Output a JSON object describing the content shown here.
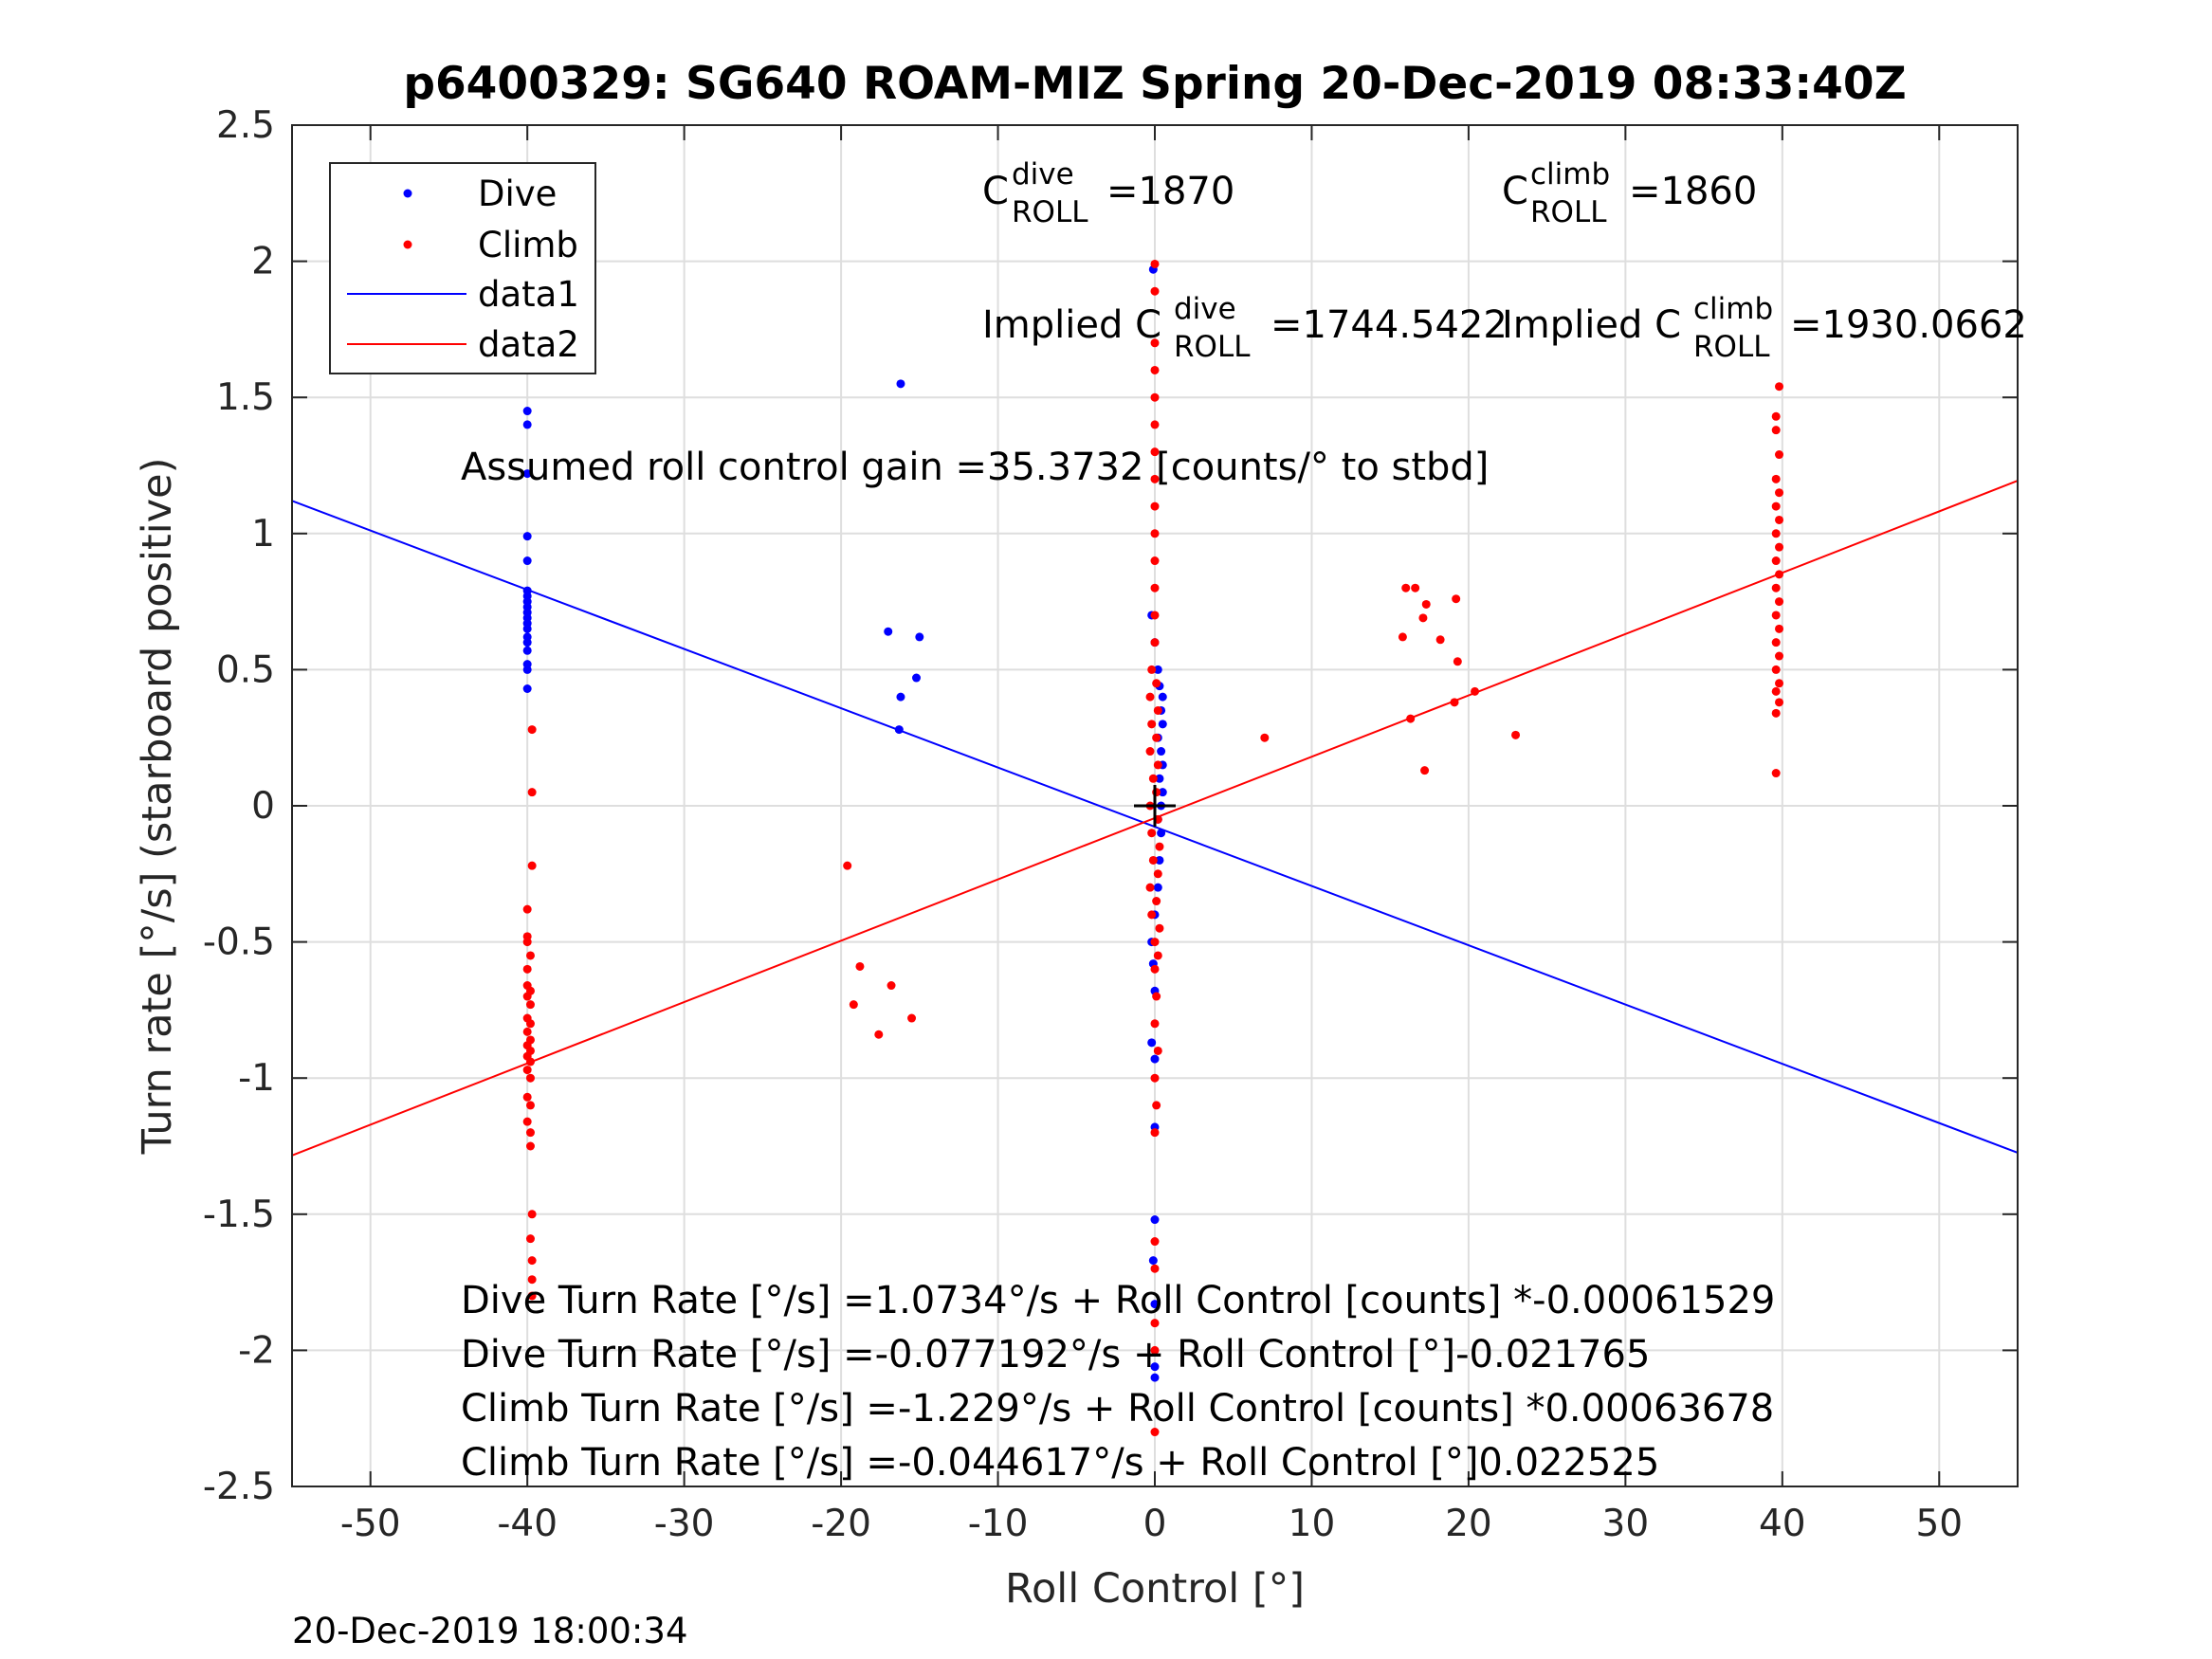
{
  "chart_data": {
    "type": "scatter",
    "title": "p6400329: SG640 ROAM-MIZ Spring 20-Dec-2019 08:33:40Z",
    "xlabel": "Roll Control [°]",
    "ylabel": "Turn rate [°/s] (starboard positive)",
    "xlim": [
      -55,
      55
    ],
    "ylim": [
      -2.5,
      2.5
    ],
    "x_ticks": [
      "-50",
      "-40",
      "-30",
      "-20",
      "-10",
      "0",
      "10",
      "20",
      "30",
      "40",
      "50"
    ],
    "y_ticks": [
      "2.5",
      "2",
      "1.5",
      "1",
      "0.5",
      "0",
      "-0.5",
      "-1",
      "-1.5",
      "-2",
      "-2.5"
    ],
    "grid": true,
    "legend_position": "top-left",
    "legend": [
      "Dive",
      "Climb",
      "data1",
      "data2"
    ],
    "colors": {
      "dive": "#0000ff",
      "climb": "#ff0000",
      "marker": "#000000"
    },
    "series": [
      {
        "name": "Dive",
        "kind": "points",
        "color": "#0000ff",
        "points": [
          [
            -40,
            1.62
          ],
          [
            -40,
            1.45
          ],
          [
            -40,
            1.4
          ],
          [
            -40,
            1.22
          ],
          [
            -40,
            0.99
          ],
          [
            -40,
            0.9
          ],
          [
            -40,
            0.79
          ],
          [
            -40,
            0.77
          ],
          [
            -40,
            0.75
          ],
          [
            -40,
            0.73
          ],
          [
            -40,
            0.71
          ],
          [
            -40,
            0.69
          ],
          [
            -40,
            0.67
          ],
          [
            -40,
            0.65
          ],
          [
            -40,
            0.62
          ],
          [
            -40,
            0.6
          ],
          [
            -40,
            0.57
          ],
          [
            -40,
            0.52
          ],
          [
            -40,
            0.5
          ],
          [
            -40,
            0.43
          ],
          [
            -16.2,
            1.55
          ],
          [
            -17,
            0.64
          ],
          [
            -15,
            0.62
          ],
          [
            -15.2,
            0.47
          ],
          [
            -16.2,
            0.4
          ],
          [
            -16.3,
            0.28
          ],
          [
            -0.1,
            1.97
          ],
          [
            -0.2,
            0.7
          ],
          [
            0,
            0.6
          ],
          [
            0.2,
            0.5
          ],
          [
            0.3,
            0.44
          ],
          [
            0.5,
            0.4
          ],
          [
            0.4,
            0.35
          ],
          [
            0.5,
            0.3
          ],
          [
            0.2,
            0.25
          ],
          [
            0.4,
            0.2
          ],
          [
            0.5,
            0.15
          ],
          [
            0.3,
            0.1
          ],
          [
            0.5,
            0.05
          ],
          [
            0.4,
            0.0
          ],
          [
            0.2,
            -0.05
          ],
          [
            0.4,
            -0.1
          ],
          [
            0.3,
            -0.2
          ],
          [
            0.2,
            -0.3
          ],
          [
            0,
            -0.4
          ],
          [
            -0.2,
            -0.5
          ],
          [
            -0.1,
            -0.58
          ],
          [
            0,
            -0.68
          ],
          [
            -0.2,
            -0.87
          ],
          [
            0,
            -0.93
          ],
          [
            0,
            -1.18
          ],
          [
            0,
            -1.52
          ],
          [
            -0.1,
            -1.67
          ],
          [
            0,
            -1.83
          ],
          [
            0,
            -2.06
          ],
          [
            0,
            -2.1
          ]
        ]
      },
      {
        "name": "Climb",
        "kind": "points",
        "color": "#ff0000",
        "points": [
          [
            -39.7,
            0.28
          ],
          [
            -39.7,
            0.05
          ],
          [
            -39.7,
            -0.22
          ],
          [
            -40,
            -0.38
          ],
          [
            -40,
            -0.48
          ],
          [
            -40,
            -0.5
          ],
          [
            -39.8,
            -0.55
          ],
          [
            -40,
            -0.6
          ],
          [
            -40,
            -0.66
          ],
          [
            -39.8,
            -0.68
          ],
          [
            -40,
            -0.7
          ],
          [
            -39.8,
            -0.73
          ],
          [
            -40,
            -0.78
          ],
          [
            -39.8,
            -0.8
          ],
          [
            -40,
            -0.83
          ],
          [
            -39.8,
            -0.86
          ],
          [
            -40,
            -0.88
          ],
          [
            -39.8,
            -0.9
          ],
          [
            -40,
            -0.92
          ],
          [
            -39.8,
            -0.94
          ],
          [
            -40,
            -0.97
          ],
          [
            -39.8,
            -1.0
          ],
          [
            -40,
            -1.07
          ],
          [
            -39.8,
            -1.1
          ],
          [
            -40,
            -1.16
          ],
          [
            -39.8,
            -1.2
          ],
          [
            -39.8,
            -1.25
          ],
          [
            -39.7,
            -1.5
          ],
          [
            -39.8,
            -1.59
          ],
          [
            -39.7,
            -1.67
          ],
          [
            -39.7,
            -1.74
          ],
          [
            -39.7,
            -1.8
          ],
          [
            -19.6,
            -0.22
          ],
          [
            -18.8,
            -0.59
          ],
          [
            -19.2,
            -0.73
          ],
          [
            -17.6,
            -0.84
          ],
          [
            -16.8,
            -0.66
          ],
          [
            -15.5,
            -0.78
          ],
          [
            0,
            1.99
          ],
          [
            0,
            1.89
          ],
          [
            0,
            1.7
          ],
          [
            0,
            1.6
          ],
          [
            0,
            1.5
          ],
          [
            0,
            1.4
          ],
          [
            0,
            1.3
          ],
          [
            0,
            1.2
          ],
          [
            0,
            1.1
          ],
          [
            0,
            1.0
          ],
          [
            0,
            0.9
          ],
          [
            0,
            0.8
          ],
          [
            0,
            0.7
          ],
          [
            0,
            0.6
          ],
          [
            -0.2,
            0.5
          ],
          [
            0.1,
            0.45
          ],
          [
            -0.3,
            0.4
          ],
          [
            0.2,
            0.35
          ],
          [
            -0.2,
            0.3
          ],
          [
            0.1,
            0.25
          ],
          [
            -0.3,
            0.2
          ],
          [
            0.2,
            0.15
          ],
          [
            -0.1,
            0.1
          ],
          [
            0.1,
            0.05
          ],
          [
            -0.3,
            0.0
          ],
          [
            0.2,
            -0.05
          ],
          [
            -0.2,
            -0.1
          ],
          [
            0.3,
            -0.15
          ],
          [
            -0.1,
            -0.2
          ],
          [
            0.2,
            -0.25
          ],
          [
            -0.3,
            -0.3
          ],
          [
            0.1,
            -0.35
          ],
          [
            -0.2,
            -0.4
          ],
          [
            0.3,
            -0.45
          ],
          [
            0,
            -0.5
          ],
          [
            0.2,
            -0.55
          ],
          [
            0,
            -0.6
          ],
          [
            0.1,
            -0.7
          ],
          [
            0,
            -0.8
          ],
          [
            0.2,
            -0.9
          ],
          [
            0,
            -1.0
          ],
          [
            0.1,
            -1.1
          ],
          [
            0,
            -1.2
          ],
          [
            0,
            -1.6
          ],
          [
            0,
            -1.7
          ],
          [
            0,
            -1.9
          ],
          [
            0,
            -2.0
          ],
          [
            0,
            -2.3
          ],
          [
            7,
            0.25
          ],
          [
            16,
            0.8
          ],
          [
            16.6,
            0.8
          ],
          [
            17.3,
            0.74
          ],
          [
            18.2,
            0.61
          ],
          [
            17.1,
            0.69
          ],
          [
            19.2,
            0.76
          ],
          [
            15.8,
            0.62
          ],
          [
            19.3,
            0.53
          ],
          [
            20.4,
            0.42
          ],
          [
            19.1,
            0.38
          ],
          [
            16.3,
            0.32
          ],
          [
            23,
            0.26
          ],
          [
            17.2,
            0.13
          ],
          [
            39.8,
            1.54
          ],
          [
            39.6,
            1.43
          ],
          [
            39.6,
            1.38
          ],
          [
            39.8,
            1.29
          ],
          [
            39.6,
            1.2
          ],
          [
            39.8,
            1.15
          ],
          [
            39.6,
            1.1
          ],
          [
            39.8,
            1.05
          ],
          [
            39.6,
            1.0
          ],
          [
            39.8,
            0.95
          ],
          [
            39.6,
            0.9
          ],
          [
            39.8,
            0.85
          ],
          [
            39.6,
            0.8
          ],
          [
            39.8,
            0.75
          ],
          [
            39.6,
            0.7
          ],
          [
            39.8,
            0.65
          ],
          [
            39.6,
            0.6
          ],
          [
            39.8,
            0.55
          ],
          [
            39.6,
            0.5
          ],
          [
            39.8,
            0.45
          ],
          [
            39.6,
            0.42
          ],
          [
            39.8,
            0.38
          ],
          [
            39.6,
            0.34
          ],
          [
            39.6,
            0.12
          ]
        ]
      },
      {
        "name": "data1",
        "kind": "line",
        "color": "#0000ff",
        "points": [
          [
            -55,
            1.12
          ],
          [
            55,
            -1.274
          ]
        ]
      },
      {
        "name": "data2",
        "kind": "line",
        "color": "#ff0000",
        "points": [
          [
            -55,
            -1.284
          ],
          [
            55,
            1.194
          ]
        ]
      }
    ],
    "center_marker": [
      0,
      0
    ]
  },
  "annotations": {
    "c_dive": {
      "base": "C",
      "sup": "dive",
      "sub": "ROLL",
      "value": "=1870"
    },
    "c_climb": {
      "base": "C",
      "sup": "climb",
      "sub": "ROLL",
      "value": "=1860"
    },
    "implied_dive": {
      "base": "Implied C",
      "sup": "dive",
      "sub": "ROLL",
      "value": "=1744.5422"
    },
    "implied_climb": {
      "base": "Implied C",
      "sup": "climb",
      "sub": "ROLL",
      "value": "=1930.0662"
    },
    "assumed_gain": "Assumed roll control gain =35.3732 [counts/° to stbd]",
    "fit_lines": [
      "Dive Turn Rate [°/s] =1.0734°/s + Roll Control [counts] *-0.00061529",
      "Dive Turn Rate [°/s] =-0.077192°/s + Roll Control [°]-0.021765",
      "Climb Turn Rate [°/s] =-1.229°/s + Roll Control [counts] *0.00063678",
      "Climb Turn Rate [°/s] =-0.044617°/s + Roll Control [°]0.022525"
    ]
  },
  "footer_timestamp": "20-Dec-2019 18:00:34"
}
